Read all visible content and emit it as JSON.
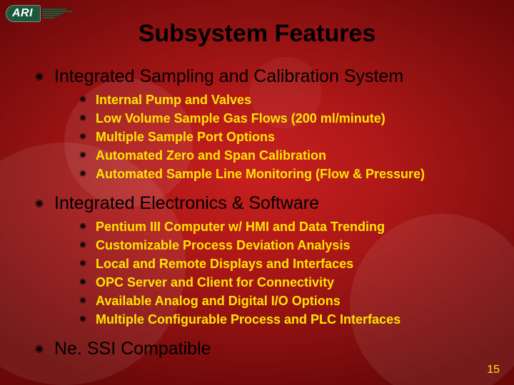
{
  "logo": {
    "text": "ARI"
  },
  "title": "Subsystem Features",
  "colors": {
    "sub_bullet_text": "#ffe400",
    "main_text": "#000000",
    "title_text": "#000000",
    "pagenum_text": "#ffe400",
    "bg_center": "#c82020",
    "bg_edge": "#6a0808"
  },
  "fonts": {
    "title_size_pt": 26,
    "lvl1_size_pt": 19,
    "lvl2_size_pt": 14
  },
  "sections": {
    "s0": {
      "heading": "Integrated Sampling and Calibration System",
      "items": [
        "Internal Pump and Valves",
        "Low Volume Sample Gas Flows (200 ml/minute)",
        "Multiple Sample Port Options",
        "Automated Zero and Span Calibration",
        "Automated  Sample Line Monitoring (Flow & Pressure)"
      ]
    },
    "s1": {
      "heading": "Integrated Electronics & Software",
      "items": [
        "Pentium III Computer w/ HMI and Data Trending",
        "Customizable Process Deviation Analysis",
        "Local and Remote Displays and Interfaces",
        "OPC Server and Client for Connectivity",
        "Available Analog and Digital I/O Options",
        "Multiple Configurable Process and PLC Interfaces"
      ]
    },
    "s2": {
      "heading": "Ne. SSI Compatible"
    }
  },
  "page_number": "15"
}
